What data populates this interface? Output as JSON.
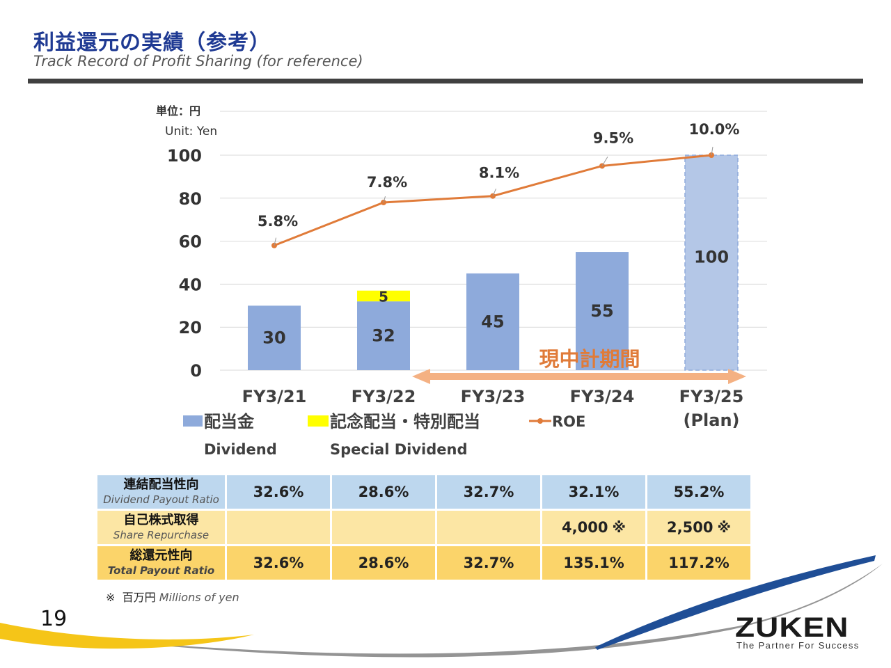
{
  "header": {
    "title_ja": "利益還元の実績（参考）",
    "title_en": "Track Record of Profit Sharing  (for reference)"
  },
  "chart_data": {
    "type": "bar",
    "unit_ja": "単位：円",
    "unit_en": "Unit: Yen",
    "categories": [
      "FY3/21",
      "FY3/22",
      "FY3/23",
      "FY3/24",
      "FY3/25"
    ],
    "category_sub": [
      "",
      "",
      "",
      "",
      "(Plan)"
    ],
    "ylim": [
      0,
      100
    ],
    "yticks": [
      0,
      20,
      40,
      60,
      80,
      100
    ],
    "series": [
      {
        "name": "配当金",
        "name_en": "Dividend",
        "values": [
          30,
          32,
          45,
          55,
          100
        ],
        "color": "#8eaadb",
        "plan_color": "#b4c7e7"
      },
      {
        "name": "記念配当・特別配当",
        "name_en": "Special Dividend",
        "values": [
          0,
          5,
          0,
          0,
          0
        ],
        "color": "#ffff00"
      }
    ],
    "line_series": {
      "name": "ROE",
      "values": [
        5.8,
        7.8,
        8.1,
        9.5,
        10.0
      ],
      "labels": [
        "5.8%",
        "7.8%",
        "8.1%",
        "9.5%",
        "10.0%"
      ],
      "color": "#e07b39"
    },
    "annotation": {
      "text": "現中計期間",
      "color": "#e07b39",
      "arrow_color": "#f4b183"
    },
    "grid": true,
    "legend_position": "bottom"
  },
  "table": {
    "rows": [
      {
        "label_ja": "連結配当性向",
        "label_en": "Dividend Payout Ratio",
        "values": [
          "32.6%",
          "28.6%",
          "32.7%",
          "32.1%",
          "55.2%"
        ],
        "marks": [
          "",
          "",
          "",
          "",
          ""
        ]
      },
      {
        "label_ja": "自己株式取得",
        "label_en": "Share Repurchase",
        "values": [
          "",
          "",
          "",
          "4,000",
          "2,500"
        ],
        "marks": [
          "",
          "",
          "",
          "※",
          "※"
        ]
      },
      {
        "label_ja": "総還元性向",
        "label_en": "Total Payout Ratio",
        "values": [
          "32.6%",
          "28.6%",
          "32.7%",
          "135.1%",
          "117.2%"
        ],
        "marks": [
          "",
          "",
          "",
          "",
          ""
        ]
      }
    ],
    "note_mark": "※",
    "note_ja": "百万円",
    "note_en": "Millions of yen"
  },
  "footer": {
    "page_number": "19",
    "logo": "ZUKEN",
    "tagline": "The Partner For Success",
    "swoosh_colors": [
      "#f5c518",
      "#1f4e96",
      "#6b6b6b"
    ]
  }
}
